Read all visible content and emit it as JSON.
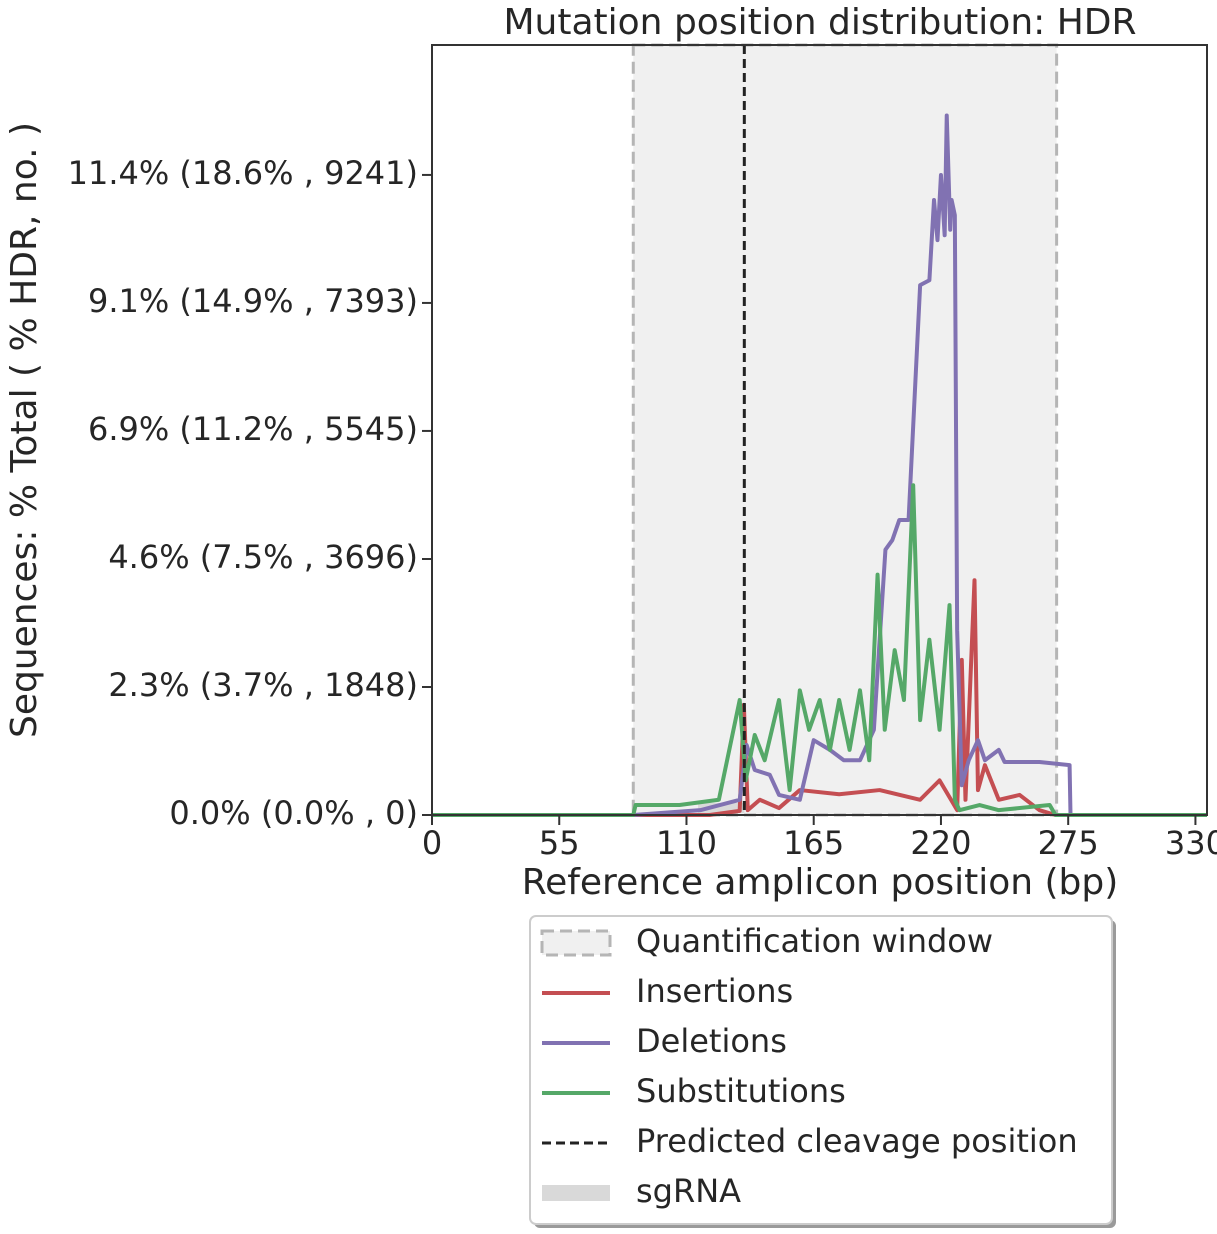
{
  "chart_data": {
    "type": "line",
    "title": "Mutation position distribution: HDR",
    "x_label": "Reference amplicon position (bp)",
    "y_label": "Sequences: % Total ( % HDR, no. )",
    "xlim": [
      0,
      335
    ],
    "xticks": [
      0,
      55,
      110,
      165,
      220,
      275,
      330
    ],
    "ylim": [
      0,
      11117
    ],
    "yticks": [
      {
        "value": 0,
        "label": "0.0% (0.0% , 0)"
      },
      {
        "value": 1848,
        "label": "2.3% (3.7% , 1848)"
      },
      {
        "value": 3696,
        "label": "4.6% (7.5% , 3696)"
      },
      {
        "value": 5545,
        "label": "6.9% (11.2% , 5545)"
      },
      {
        "value": 7393,
        "label": "9.1% (14.9% , 7393)"
      },
      {
        "value": 9241,
        "label": "11.4% (18.6% , 9241)"
      }
    ],
    "quantification_window": {
      "name": "Quantification window",
      "range": [
        87,
        270
      ],
      "color": "#f0f0f0"
    },
    "cleavage": {
      "name": "Predicted cleavage position",
      "x": 135,
      "color": "#222222"
    },
    "sgrna": {
      "name": "sgRNA",
      "range": [
        115,
        135
      ],
      "color": "#d9d9d9"
    },
    "series": [
      {
        "name": "Insertions",
        "color": "#c44e52",
        "x": [
          0,
          87,
          120,
          133,
          134.8,
          136.5,
          141.7,
          150,
          159,
          176,
          193.5,
          211,
          219.4,
          227,
          229,
          230.6,
          234.5,
          236,
          239,
          245,
          254,
          262.6,
          269.5,
          335
        ],
        "values": [
          0,
          0,
          0,
          60,
          1590,
          70,
          220,
          100,
          360,
          300,
          360,
          220,
          500,
          70,
          2240,
          220,
          3390,
          360,
          720,
          220,
          290,
          70,
          0,
          0
        ]
      },
      {
        "name": "Deletions",
        "color": "#8172b2",
        "x": [
          0,
          87,
          116,
          133,
          136,
          139.5,
          146,
          150,
          159,
          165,
          172,
          178,
          185,
          191,
          196,
          199,
          202,
          206,
          211,
          215,
          217,
          218.5,
          220,
          221.6,
          222.5,
          224,
          224.6,
          226,
          227,
          229,
          232,
          236,
          239,
          245,
          247.5,
          262.6,
          275.6,
          276,
          335
        ],
        "values": [
          0,
          0,
          70,
          220,
          1010,
          650,
          580,
          290,
          220,
          1080,
          940,
          790,
          790,
          1230,
          3830,
          3970,
          4260,
          4260,
          7650,
          7720,
          8880,
          8300,
          9240,
          8370,
          10100,
          8450,
          8880,
          8660,
          2670,
          430,
          790,
          1080,
          790,
          940,
          765,
          765,
          720,
          0,
          0
        ]
      },
      {
        "name": "Substitutions",
        "color": "#55a868",
        "x": [
          0,
          87,
          88,
          107,
          124,
          133,
          135.6,
          139.5,
          143.8,
          150,
          154.6,
          159,
          163,
          167.6,
          172,
          176,
          180.5,
          185,
          189,
          192.6,
          195.7,
          200,
          204,
          208,
          211,
          215,
          219.4,
          223.7,
          226,
          228,
          236.7,
          245,
          267,
          269.5,
          335
        ],
        "values": [
          0,
          0,
          144,
          144,
          220,
          1660,
          500,
          1155,
          790,
          1660,
          360,
          1800,
          1230,
          1660,
          940,
          1660,
          940,
          1800,
          790,
          3470,
          1230,
          2380,
          1660,
          4760,
          1370,
          2530,
          1230,
          3030,
          220,
          70,
          144,
          70,
          144,
          0,
          0
        ]
      }
    ],
    "legend": "below"
  }
}
